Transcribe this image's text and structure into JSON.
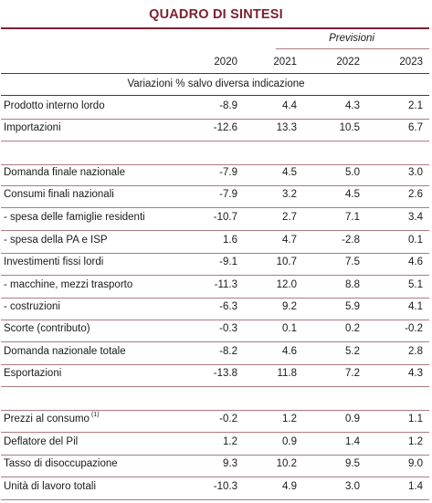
{
  "title": "QUADRO DI SINTESI",
  "forecast_label": "Previsioni",
  "columns": [
    "2020",
    "2021",
    "2022",
    "2023"
  ],
  "subtitle": "Variazioni % salvo diversa indicazione",
  "rows": [
    {
      "label": "Prodotto interno lordo",
      "values": [
        "-8.9",
        "4.4",
        "4.3",
        "2.1"
      ]
    },
    {
      "label": "Importazioni",
      "values": [
        "-12.6",
        "13.3",
        "10.5",
        "6.7"
      ]
    },
    {
      "label": "Domanda finale nazionale",
      "values": [
        "-7.9",
        "4.5",
        "5.0",
        "3.0"
      ]
    },
    {
      "label": "Consumi finali nazionali",
      "values": [
        "-7.9",
        "3.2",
        "4.5",
        "2.6"
      ]
    },
    {
      "label": " - spesa delle famiglie residenti",
      "values": [
        "-10.7",
        "2.7",
        "7.1",
        "3.4"
      ]
    },
    {
      "label": " - spesa della PA e ISP",
      "values": [
        "1.6",
        "4.7",
        "-2.8",
        "0.1"
      ]
    },
    {
      "label": "Investimenti fissi lordi",
      "values": [
        "-9.1",
        "10.7",
        "7.5",
        "4.6"
      ]
    },
    {
      "label": " - macchine, mezzi trasporto",
      "values": [
        "-11.3",
        "12.0",
        "8.8",
        "5.1"
      ]
    },
    {
      "label": " - costruzioni",
      "values": [
        "-6.3",
        "9.2",
        "5.9",
        "4.1"
      ]
    },
    {
      "label": "Scorte (contributo)",
      "values": [
        "-0.3",
        "0.1",
        "0.2",
        "-0.2"
      ]
    },
    {
      "label": "Domanda nazionale totale",
      "values": [
        "-8.2",
        "4.6",
        "5.2",
        "2.8"
      ]
    },
    {
      "label": "Esportazioni",
      "values": [
        "-13.8",
        "11.8",
        "7.2",
        "4.3"
      ]
    },
    {
      "label": "Prezzi al consumo",
      "note": "(1)",
      "values": [
        "-0.2",
        "1.2",
        "0.9",
        "1.1"
      ]
    },
    {
      "label": "Deflatore del Pil",
      "values": [
        "1.2",
        "0.9",
        "1.4",
        "1.2"
      ]
    },
    {
      "label": "Tasso di disoccupazione",
      "values": [
        "9.3",
        "10.2",
        "9.5",
        "9.0"
      ]
    },
    {
      "label": "Unità di lavoro totali",
      "values": [
        "-10.3",
        "4.9",
        "3.0",
        "1.4"
      ]
    }
  ],
  "colors": {
    "accent": "#7b2230",
    "rule": "#b07a82",
    "text": "#1a1a1a"
  }
}
